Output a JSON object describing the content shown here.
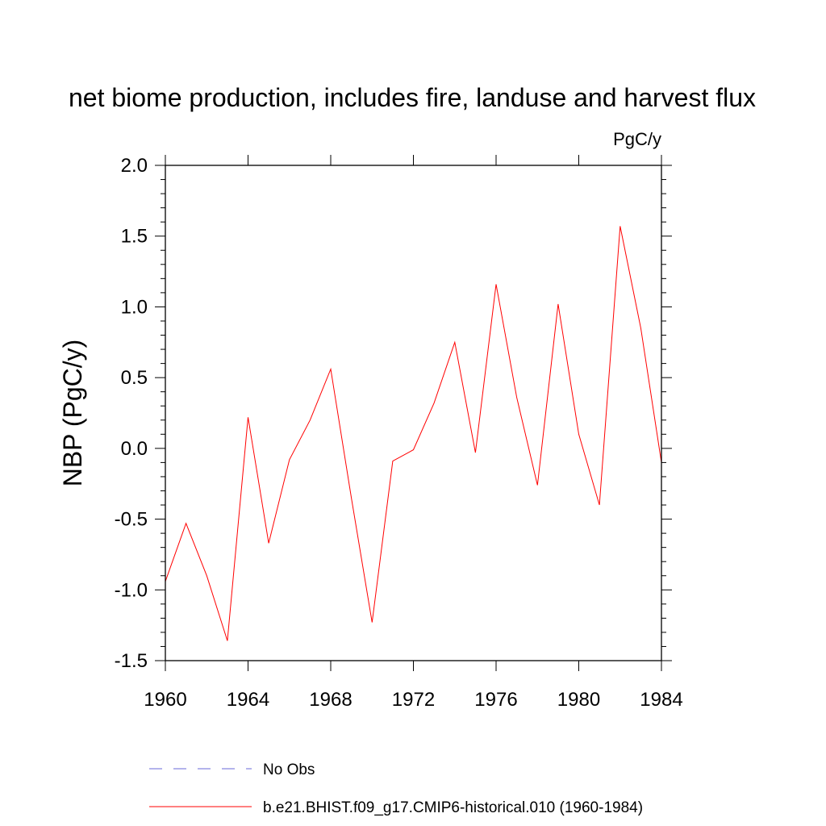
{
  "chart_data": {
    "type": "line",
    "title": "net biome production, includes fire, landuse and harvest flux",
    "units": "PgC/y",
    "ylabel": "NBP  (PgC/y)",
    "xlabel": "",
    "xlim": [
      1960,
      1984
    ],
    "ylim": [
      -1.5,
      2.0
    ],
    "x_ticks": [
      1960,
      1964,
      1968,
      1972,
      1976,
      1980,
      1984
    ],
    "x_tick_labels": [
      "1960",
      "1964",
      "1968",
      "1972",
      "1976",
      "1980",
      "1984"
    ],
    "y_ticks": [
      -1.5,
      -1.0,
      -0.5,
      0.0,
      0.5,
      1.0,
      1.5,
      2.0
    ],
    "y_tick_labels": [
      "-1.5",
      "-1.0",
      "-0.5",
      "0.0",
      "0.5",
      "1.0",
      "1.5",
      "2.0"
    ],
    "x": [
      1960,
      1961,
      1962,
      1963,
      1964,
      1965,
      1966,
      1967,
      1968,
      1969,
      1970,
      1971,
      1972,
      1973,
      1974,
      1975,
      1976,
      1977,
      1978,
      1979,
      1980,
      1981,
      1982,
      1983,
      1984
    ],
    "series": [
      {
        "name": "b.e21.BHIST.f09_g17.CMIP6-historical.010 (1960-1984)",
        "color": "#ff0000",
        "line_style": "solid",
        "values": [
          -0.94,
          -0.53,
          -0.9,
          -1.36,
          0.22,
          -0.67,
          -0.08,
          0.2,
          0.56,
          -0.35,
          -1.23,
          -0.09,
          -0.01,
          0.32,
          0.75,
          -0.03,
          1.16,
          0.36,
          -0.26,
          1.02,
          0.1,
          -0.4,
          1.57,
          0.85,
          -0.1
        ]
      }
    ],
    "legend": {
      "placement": "bottom",
      "entries": [
        {
          "label": "No Obs",
          "color": "#6a6ad8",
          "line_style": "dashed"
        },
        {
          "label": "b.e21.BHIST.f09_g17.CMIP6-historical.010 (1960-1984)",
          "color": "#ff0000",
          "line_style": "solid"
        }
      ]
    },
    "grid": false
  }
}
